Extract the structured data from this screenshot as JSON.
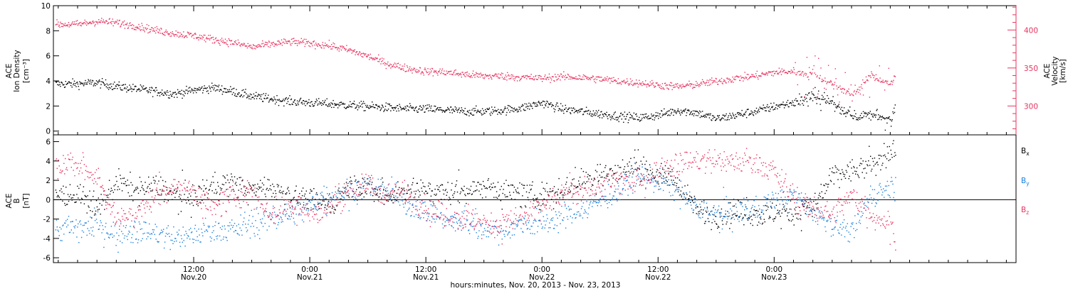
{
  "colors": {
    "black": "#000000",
    "pink": "#e8335f",
    "blue": "#1a7fdc"
  },
  "chart_data": [
    {
      "type": "scatter",
      "panel": "top",
      "ylabel_left": [
        "ACE",
        "Ion Density",
        "[cm⁻³]"
      ],
      "ylabel_right": [
        "ACE",
        "Velocity",
        "[km/s]"
      ],
      "ylim_left": [
        -0.3,
        10
      ],
      "ylim_right": [
        262,
        432
      ],
      "yticks_left": [
        "0",
        "2",
        "4",
        "6",
        "8",
        "10"
      ],
      "yticks_left_values": [
        0,
        2,
        4,
        6,
        8,
        10
      ],
      "yticks_right": [
        "300",
        "350",
        "400"
      ],
      "yticks_right_values": [
        300,
        350,
        400
      ],
      "series": [
        {
          "color": "#000000",
          "axis": "left",
          "x": [
            -12,
            -10,
            -8,
            -6,
            -4,
            -2,
            0,
            2,
            4,
            6,
            8,
            10,
            12,
            14,
            16,
            18,
            20,
            22,
            24,
            26,
            28,
            30,
            32,
            34,
            36,
            38,
            40,
            42,
            44,
            46,
            48,
            50,
            52,
            54,
            56,
            58,
            60,
            62,
            64,
            66,
            68,
            70,
            72,
            72.5
          ],
          "y": [
            3.8,
            3.9,
            3.6,
            3.4,
            3.2,
            3.0,
            3.3,
            3.5,
            3.2,
            2.8,
            2.6,
            2.4,
            2.3,
            2.2,
            2.1,
            2.0,
            1.9,
            1.8,
            1.8,
            1.7,
            1.6,
            1.6,
            1.7,
            1.9,
            2.3,
            1.8,
            1.6,
            1.4,
            1.2,
            1.1,
            1.3,
            1.7,
            1.5,
            1.0,
            1.3,
            1.6,
            2.0,
            2.3,
            2.8,
            2.3,
            1.2,
            1.3,
            1.0,
            2.3
          ]
        },
        {
          "color": "#e8335f",
          "axis": "right",
          "x": [
            -12,
            -10,
            -8,
            -6,
            -4,
            -2,
            0,
            2,
            4,
            6,
            8,
            10,
            12,
            14,
            16,
            18,
            20,
            22,
            24,
            26,
            28,
            30,
            32,
            34,
            36,
            38,
            40,
            42,
            44,
            46,
            48,
            50,
            52,
            54,
            56,
            58,
            60,
            62,
            64,
            66,
            68,
            70,
            72,
            72.5
          ],
          "y": [
            408,
            412,
            410,
            406,
            400,
            396,
            393,
            388,
            384,
            378,
            382,
            385,
            383,
            380,
            374,
            366,
            356,
            350,
            346,
            345,
            342,
            340,
            340,
            338,
            337,
            339,
            338,
            336,
            333,
            331,
            328,
            326,
            329,
            333,
            337,
            340,
            345,
            346,
            342,
            330,
            315,
            340,
            330,
            338
          ]
        }
      ]
    },
    {
      "type": "scatter",
      "panel": "bottom",
      "ylabel_left": [
        "ACE",
        "B",
        "[nT]"
      ],
      "ylim": [
        -6.5,
        6.7
      ],
      "yticks": [
        "-6",
        "-4",
        "-2",
        "0",
        "2",
        "4",
        "6"
      ],
      "ytick_values": [
        -6,
        -4,
        -2,
        0,
        2,
        4,
        6
      ],
      "zero_line": true,
      "series": [
        {
          "name": "B",
          "sub": "x",
          "color": "#000000",
          "x": [
            -12,
            -10,
            -8,
            -6,
            -4,
            -2,
            0,
            2,
            4,
            6,
            8,
            10,
            12,
            14,
            16,
            18,
            20,
            22,
            24,
            26,
            28,
            30,
            32,
            34,
            36,
            38,
            40,
            42,
            44,
            46,
            48,
            50,
            52,
            54,
            56,
            58,
            60,
            62,
            64,
            66,
            68,
            70,
            72,
            72.5
          ],
          "y": [
            0.5,
            -1.0,
            2.0,
            1.0,
            1.5,
            0.5,
            0.2,
            1.5,
            1.8,
            1.0,
            1.5,
            0.5,
            0.0,
            -0.5,
            1.5,
            1.0,
            0.5,
            1.2,
            1.0,
            0.8,
            1.0,
            1.5,
            1.0,
            0.5,
            0.5,
            1.0,
            2.0,
            2.5,
            3.0,
            3.5,
            2.5,
            2.0,
            -1.0,
            -1.5,
            -1.2,
            -1.5,
            -1.5,
            -1.2,
            -1.0,
            2.5,
            3.0,
            3.5,
            5.0,
            5.3
          ]
        },
        {
          "name": "B",
          "sub": "y",
          "color": "#1a7fdc",
          "x": [
            -12,
            -10,
            -8,
            -6,
            -4,
            -2,
            0,
            2,
            4,
            6,
            8,
            10,
            12,
            14,
            16,
            18,
            20,
            22,
            24,
            26,
            28,
            30,
            32,
            34,
            36,
            38,
            40,
            42,
            44,
            46,
            48,
            50,
            52,
            54,
            56,
            58,
            60,
            62,
            64,
            66,
            68,
            70,
            72,
            72.5
          ],
          "y": [
            -3.0,
            -2.5,
            -3.5,
            -3.0,
            -3.5,
            -4.0,
            -3.5,
            -3.0,
            -3.0,
            -2.5,
            -2.0,
            -1.5,
            -0.5,
            0.5,
            1.0,
            1.5,
            1.0,
            -0.5,
            -1.0,
            -2.0,
            -2.5,
            -2.8,
            -3.0,
            -2.5,
            -2.5,
            -1.8,
            -1.0,
            0.0,
            1.0,
            2.5,
            2.0,
            1.0,
            -1.0,
            -1.5,
            -1.2,
            -1.0,
            0.0,
            0.5,
            -1.0,
            -2.5,
            -3.5,
            0.5,
            1.5,
            1.2
          ]
        },
        {
          "name": "B",
          "sub": "z",
          "color": "#e8335f",
          "x": [
            -12,
            -10,
            -8,
            -6,
            -4,
            -2,
            0,
            2,
            4,
            6,
            8,
            10,
            12,
            14,
            16,
            18,
            20,
            22,
            24,
            26,
            28,
            30,
            32,
            34,
            36,
            38,
            40,
            42,
            44,
            46,
            48,
            50,
            52,
            54,
            56,
            58,
            60,
            62,
            64,
            66,
            68,
            70,
            72,
            72.5
          ],
          "y": [
            3.5,
            2.5,
            -2.0,
            -1.5,
            0.5,
            1.5,
            1.0,
            -1.0,
            0.5,
            1.0,
            -1.5,
            -0.5,
            -1.5,
            -1.0,
            1.0,
            1.5,
            0.5,
            1.0,
            -1.0,
            -1.5,
            -2.0,
            -2.5,
            -2.5,
            -2.0,
            -0.5,
            0.5,
            1.0,
            1.5,
            2.0,
            2.0,
            3.0,
            4.0,
            4.0,
            4.0,
            4.0,
            4.0,
            3.0,
            0.0,
            -1.0,
            -1.5,
            0.5,
            -1.5,
            -2.5,
            -4.0
          ]
        }
      ]
    }
  ],
  "x_axis": {
    "xlim_hours": [
      -14.5,
      85
    ],
    "ticks": [
      {
        "h": 0,
        "time": "12:00",
        "date": "Nov.20"
      },
      {
        "h": 12,
        "time": "0:00",
        "date": "Nov.21"
      },
      {
        "h": 24,
        "time": "12:00",
        "date": "Nov.21"
      },
      {
        "h": 36,
        "time": "0:00",
        "date": "Nov.22"
      },
      {
        "h": 48,
        "time": "12:00",
        "date": "Nov.22"
      },
      {
        "h": 60,
        "time": "0:00",
        "date": "Nov.23"
      }
    ],
    "label": "hours:minutes, Nov. 20, 2013 - Nov. 23, 2013"
  }
}
